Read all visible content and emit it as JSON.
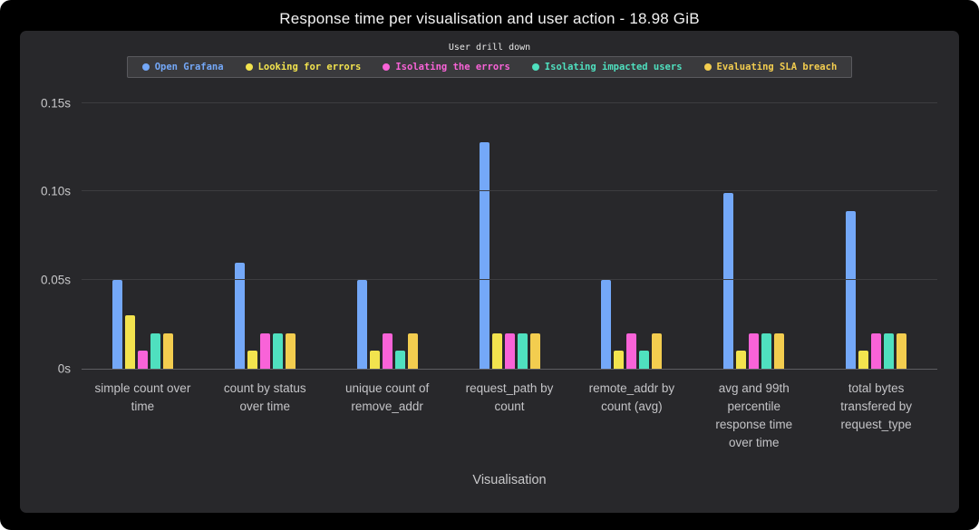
{
  "title": "Response time per visualisation and user action - 18.98 GiB",
  "legend": {
    "title": "User drill down",
    "items": [
      {
        "label": "Open Grafana",
        "color": "#74a8f8"
      },
      {
        "label": "Looking for errors",
        "color": "#f2e34e"
      },
      {
        "label": "Isolating the errors",
        "color": "#f963d8"
      },
      {
        "label": "Isolating impacted users",
        "color": "#4fe0bf"
      },
      {
        "label": "Evaluating SLA breach",
        "color": "#f3cd4f"
      }
    ]
  },
  "chart_data": {
    "type": "bar",
    "title": "Response time per visualisation and user action - 18.98 GiB",
    "xlabel": "Visualisation",
    "ylabel": "",
    "ylim": [
      0,
      0.157
    ],
    "grid": true,
    "legend_position": "top",
    "legend_title": "User drill down",
    "yticks": [
      {
        "value": 0,
        "label": "0s"
      },
      {
        "value": 0.05,
        "label": "0.05s"
      },
      {
        "value": 0.1,
        "label": "0.10s"
      },
      {
        "value": 0.15,
        "label": "0.15s"
      }
    ],
    "categories": [
      "simple count over time",
      "count by status over time",
      "unique count of remove_addr",
      "request_path by count",
      "remote_addr by count (avg)",
      "avg and 99th percentile response time over time",
      "total bytes transfered by request_type"
    ],
    "series": [
      {
        "name": "Open Grafana",
        "color": "#74a8f8",
        "values": [
          0.05,
          0.06,
          0.05,
          0.128,
          0.05,
          0.099,
          0.089
        ]
      },
      {
        "name": "Looking for errors",
        "color": "#f2e34e",
        "values": [
          0.03,
          0.01,
          0.01,
          0.02,
          0.01,
          0.01,
          0.01
        ]
      },
      {
        "name": "Isolating the errors",
        "color": "#f963d8",
        "values": [
          0.01,
          0.02,
          0.02,
          0.02,
          0.02,
          0.02,
          0.02
        ]
      },
      {
        "name": "Isolating impacted users",
        "color": "#4fe0bf",
        "values": [
          0.02,
          0.02,
          0.01,
          0.02,
          0.01,
          0.02,
          0.02
        ]
      },
      {
        "name": "Evaluating SLA breach",
        "color": "#f3cd4f",
        "values": [
          0.02,
          0.02,
          0.02,
          0.02,
          0.02,
          0.02,
          0.02
        ]
      }
    ]
  }
}
